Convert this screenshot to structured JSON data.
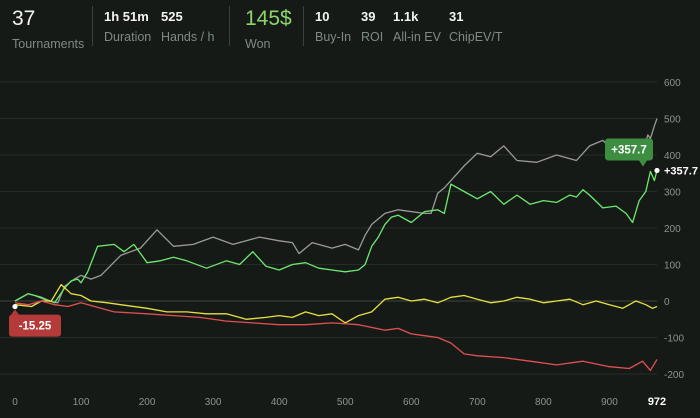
{
  "stats": {
    "tournaments": {
      "value": "37",
      "label": "Tournaments"
    },
    "duration": {
      "value": "1h 51m",
      "label": "Duration"
    },
    "hands_per_hour": {
      "value": "525",
      "label": "Hands / h"
    },
    "won": {
      "value": "145$",
      "label": "Won"
    },
    "buy_in": {
      "value": "10",
      "label": "Buy-In"
    },
    "roi": {
      "value": "39",
      "label": "ROI"
    },
    "allin_ev": {
      "value": "1.1k",
      "label": "All-in EV"
    },
    "chipev": {
      "value": "31",
      "label": "ChipEV/T"
    }
  },
  "colors": {
    "won": "#8fd46a",
    "grey_series": "#9a9a9a",
    "green_series": "#6ee86e",
    "yellow_series": "#e8e040",
    "red_series": "#e05050",
    "positive_tag": "#3e8e41",
    "negative_tag": "#b53a3a"
  },
  "chart_data": {
    "type": "line",
    "xlim": [
      0,
      972
    ],
    "ylim": [
      -200,
      600
    ],
    "x_ticks": [
      "0",
      "100",
      "200",
      "300",
      "400",
      "500",
      "600",
      "700",
      "800",
      "900",
      "972"
    ],
    "y_ticks": [
      "600",
      "500",
      "400",
      "300",
      "200",
      "100",
      "0",
      "-100",
      "-200"
    ],
    "grid": true,
    "series": [
      {
        "color": "#9a9a9a",
        "x": [
          0,
          20,
          30,
          50,
          65,
          75,
          90,
          100,
          115,
          130,
          160,
          190,
          215,
          240,
          270,
          300,
          330,
          350,
          370,
          400,
          420,
          430,
          450,
          480,
          500,
          520,
          530,
          540,
          550,
          560,
          580,
          620,
          630,
          640,
          650,
          660,
          680,
          700,
          720,
          740,
          760,
          790,
          820,
          850,
          870,
          890,
          910,
          930,
          950,
          958,
          962,
          968,
          972
        ],
        "y": [
          0,
          20,
          15,
          0,
          -5,
          40,
          60,
          70,
          60,
          70,
          125,
          145,
          195,
          150,
          155,
          175,
          155,
          165,
          175,
          165,
          160,
          130,
          160,
          145,
          155,
          140,
          180,
          210,
          225,
          240,
          250,
          240,
          240,
          295,
          310,
          330,
          370,
          405,
          395,
          425,
          385,
          380,
          400,
          385,
          425,
          440,
          405,
          410,
          405,
          455,
          445,
          480,
          500
        ]
      },
      {
        "color": "#6ee86e",
        "x": [
          0,
          20,
          40,
          60,
          75,
          85,
          95,
          100,
          110,
          125,
          150,
          165,
          180,
          200,
          220,
          240,
          260,
          290,
          320,
          340,
          360,
          380,
          400,
          420,
          440,
          460,
          480,
          500,
          520,
          530,
          540,
          550,
          560,
          570,
          580,
          600,
          620,
          640,
          650,
          660,
          680,
          700,
          720,
          740,
          760,
          780,
          800,
          820,
          840,
          850,
          860,
          870,
          890,
          910,
          925,
          935,
          945,
          955,
          962,
          968,
          972
        ],
        "y": [
          0,
          20,
          10,
          -5,
          35,
          55,
          60,
          50,
          80,
          150,
          155,
          135,
          155,
          105,
          110,
          120,
          110,
          90,
          110,
          100,
          135,
          95,
          85,
          100,
          105,
          90,
          85,
          80,
          85,
          100,
          150,
          175,
          210,
          230,
          235,
          215,
          245,
          250,
          240,
          320,
          300,
          280,
          300,
          265,
          290,
          265,
          275,
          270,
          290,
          285,
          305,
          290,
          255,
          260,
          240,
          215,
          275,
          300,
          355,
          330,
          357.7
        ]
      },
      {
        "color": "#e8e040",
        "x": [
          0,
          25,
          40,
          55,
          70,
          85,
          100,
          115,
          140,
          160,
          200,
          230,
          260,
          290,
          320,
          350,
          380,
          400,
          420,
          440,
          460,
          480,
          500,
          520,
          540,
          560,
          580,
          600,
          620,
          640,
          660,
          680,
          700,
          720,
          740,
          760,
          780,
          800,
          820,
          840,
          860,
          880,
          900,
          920,
          940,
          955,
          965,
          972
        ],
        "y": [
          -10,
          -15,
          0,
          0,
          45,
          20,
          15,
          0,
          -5,
          -10,
          -20,
          -30,
          -30,
          -35,
          -35,
          -50,
          -45,
          -40,
          -45,
          -30,
          -40,
          -35,
          -60,
          -40,
          -30,
          5,
          10,
          0,
          5,
          -5,
          10,
          15,
          5,
          -5,
          0,
          10,
          5,
          -5,
          0,
          5,
          -10,
          0,
          -10,
          -20,
          0,
          -10,
          -20,
          -15
        ]
      },
      {
        "color": "#e05050",
        "x": [
          0,
          20,
          40,
          60,
          80,
          100,
          150,
          200,
          240,
          280,
          320,
          360,
          400,
          440,
          480,
          520,
          560,
          580,
          600,
          620,
          640,
          660,
          680,
          700,
          740,
          780,
          820,
          860,
          900,
          930,
          950,
          962,
          972
        ],
        "y": [
          -5,
          -10,
          0,
          -10,
          -15,
          -5,
          -30,
          -35,
          -40,
          -45,
          -55,
          -60,
          -65,
          -65,
          -60,
          -65,
          -80,
          -75,
          -90,
          -95,
          -100,
          -115,
          -145,
          -150,
          -155,
          -165,
          -175,
          -165,
          -180,
          -185,
          -165,
          -190,
          -160
        ]
      }
    ],
    "markers": [
      {
        "label": "+357.7",
        "x": 972,
        "y": 357.7,
        "kind": "positive"
      },
      {
        "label": "-15.25",
        "x": 0,
        "y": -15.25,
        "kind": "negative"
      }
    ],
    "edge_label": "+357.7"
  }
}
